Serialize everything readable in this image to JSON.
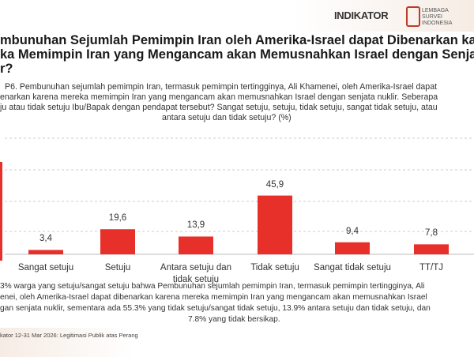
{
  "header": {
    "logo_indikator": "INDIKATOR",
    "logo_lsi": "LEMBAGA SURVEI INDONESIA",
    "title": [
      "mbunuhan Sejumlah Pemimpin Iran oleh Amerika-Israel dapat Dibenarkan karen",
      "ka Memimpin Iran yang Mengancam akan Memusnahkan Israel dengan Senja",
      "r?"
    ]
  },
  "question": [
    "P6. Pembunuhan sejumlah pemimpin Iran, termasuk pemimpin tertingginya, Ali Khamenei, oleh Amerika-Israel dapat",
    "enarkan karena mereka memimpin Iran yang mengancam akan memusnahkan Israel dengan senjata nuklir. Seberapa",
    "ju atau tidak setuju Ibu/Bapak dengan pendapat tersebut? Sangat setuju, setuju, tidak setuju, sangat tidak setuju, atau",
    "antara setuju dan tidak setuju? (%)"
  ],
  "chart_data": {
    "type": "bar",
    "categories": [
      "Sangat setuju",
      "Setuju",
      "Antara setuju dan tidak setuju",
      "Tidak setuju",
      "Sangat tidak setuju",
      "TT/TJ"
    ],
    "values": [
      3.4,
      19.6,
      13.9,
      45.9,
      9.4,
      7.8
    ],
    "value_labels": [
      "3,4",
      "19,6",
      "13,9",
      "45,9",
      "9,4",
      "7,8"
    ],
    "color": "#e8302a",
    "ylim": [
      0,
      66
    ]
  },
  "footnote": [
    "3% warga yang setuju/sangat setuju bahwa Pembunuhan sejumlah pemimpin Iran, termasuk pemimpin tertingginya, Ali",
    "enei, oleh Amerika-Israel dapat dibenarkan karena mereka memimpin Iran yang mengancam akan memusnahkan Israel",
    "gan senjata nuklir, sementara ada 55.3% yang tidak setuju/sangat tidak setuju, 13.9% antara setuju dan tidak setuju, dan",
    "7.8% yang tidak bersikap."
  ],
  "source": "kator 12-31 Mar 2026: Legitimasi Publik atas Perang"
}
